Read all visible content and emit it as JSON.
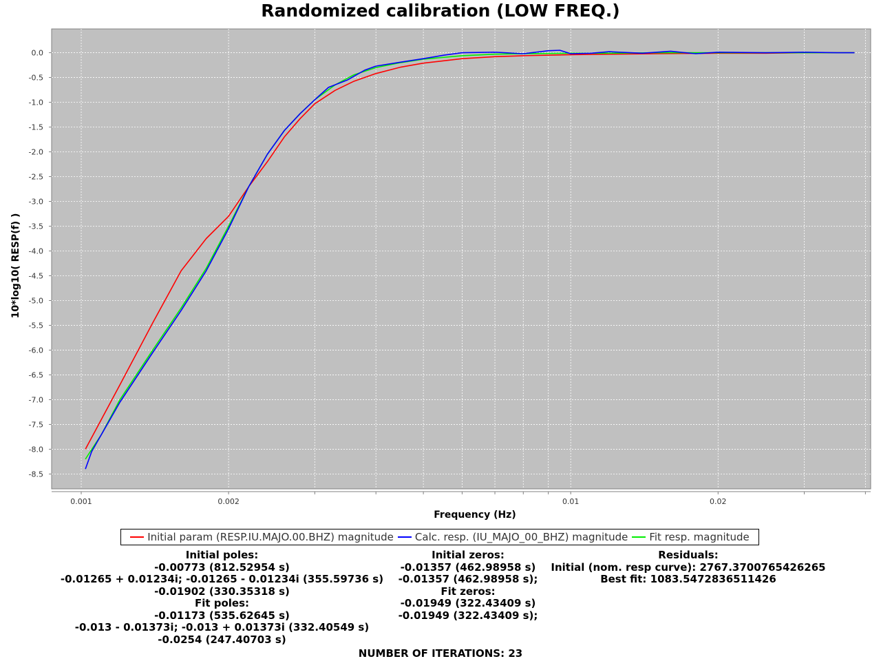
{
  "title": "Randomized calibration (LOW FREQ.)",
  "chart_data": {
    "type": "line",
    "title": "Randomized calibration (LOW FREQ.)",
    "xlabel": "Frequency (Hz)",
    "ylabel": "10*log10( RESP(f) )",
    "xscale": "log",
    "xlim": [
      0.00087,
      0.041
    ],
    "ylim": [
      -8.8,
      0.48
    ],
    "grid": true,
    "background": "#c0c0c0",
    "x_ticks": [
      "0.001",
      "0.002",
      "0.01",
      "0.02"
    ],
    "x_tick_values": [
      0.001,
      0.002,
      0.01,
      0.02
    ],
    "y_ticks": [
      "0.0",
      "-0.5",
      "-1.0",
      "-1.5",
      "-2.0",
      "-2.5",
      "-3.0",
      "-3.5",
      "-4.0",
      "-4.5",
      "-5.0",
      "-5.5",
      "-6.0",
      "-6.5",
      "-7.0",
      "-7.5",
      "-8.0",
      "-8.5"
    ],
    "y_tick_values": [
      0,
      -0.5,
      -1,
      -1.5,
      -2,
      -2.5,
      -3,
      -3.5,
      -4,
      -4.5,
      -5,
      -5.5,
      -6,
      -6.5,
      -7,
      -7.5,
      -8,
      -8.5
    ],
    "legend_position": "bottom",
    "series": [
      {
        "name": "Initial param (RESP.IU.MAJO.00.BHZ) magnitude",
        "color": "#ff0000",
        "x": [
          0.00102,
          0.0012,
          0.0014,
          0.0016,
          0.0018,
          0.002,
          0.0022,
          0.0024,
          0.0026,
          0.0028,
          0.003,
          0.0033,
          0.0036,
          0.004,
          0.0045,
          0.005,
          0.006,
          0.007,
          0.008,
          0.01,
          0.012,
          0.015,
          0.02,
          0.025,
          0.03,
          0.035,
          0.038
        ],
        "y": [
          -8.0,
          -6.7,
          -5.45,
          -4.4,
          -3.75,
          -3.3,
          -2.7,
          -2.2,
          -1.7,
          -1.33,
          -1.03,
          -0.76,
          -0.58,
          -0.42,
          -0.29,
          -0.21,
          -0.12,
          -0.08,
          -0.06,
          -0.04,
          -0.03,
          -0.02,
          -0.01,
          -0.01,
          0.0,
          0.0,
          0.0
        ]
      },
      {
        "name": "Calc. resp. (IU_MAJO_00_BHZ) magnitude",
        "color": "#0000ff",
        "x": [
          0.00102,
          0.00105,
          0.0011,
          0.0012,
          0.0014,
          0.0016,
          0.0018,
          0.002,
          0.0022,
          0.0024,
          0.0026,
          0.0028,
          0.003,
          0.0032,
          0.0035,
          0.0038,
          0.004,
          0.0045,
          0.005,
          0.0055,
          0.006,
          0.007,
          0.008,
          0.009,
          0.0095,
          0.01,
          0.011,
          0.012,
          0.014,
          0.016,
          0.018,
          0.02,
          0.025,
          0.03,
          0.035,
          0.038
        ],
        "y": [
          -8.4,
          -8.05,
          -7.7,
          -7.05,
          -6.05,
          -5.2,
          -4.4,
          -3.55,
          -2.7,
          -2.05,
          -1.57,
          -1.23,
          -0.95,
          -0.7,
          -0.55,
          -0.35,
          -0.27,
          -0.19,
          -0.12,
          -0.05,
          0.0,
          0.01,
          -0.02,
          0.04,
          0.05,
          -0.02,
          -0.01,
          0.02,
          -0.01,
          0.03,
          -0.02,
          0.01,
          0.0,
          0.01,
          0.0,
          0.0
        ]
      },
      {
        "name": "Fit resp. magnitude",
        "color": "#00ee00",
        "x": [
          0.00102,
          0.0011,
          0.0012,
          0.0014,
          0.0016,
          0.0018,
          0.002,
          0.0022,
          0.0024,
          0.0026,
          0.0028,
          0.003,
          0.0033,
          0.0036,
          0.004,
          0.0045,
          0.005,
          0.006,
          0.007,
          0.008,
          0.01,
          0.012,
          0.015,
          0.02,
          0.025,
          0.03,
          0.035,
          0.038
        ],
        "y": [
          -8.2,
          -7.7,
          -7.0,
          -6.0,
          -5.15,
          -4.35,
          -3.5,
          -2.7,
          -2.05,
          -1.57,
          -1.23,
          -0.95,
          -0.65,
          -0.45,
          -0.3,
          -0.2,
          -0.13,
          -0.06,
          -0.03,
          -0.02,
          -0.01,
          -0.01,
          0.0,
          0.0,
          0.0,
          0.0,
          0.0,
          0.0
        ]
      }
    ]
  },
  "legend": {
    "items": [
      {
        "label": "Initial param (RESP.IU.MAJO.00.BHZ) magnitude",
        "color": "#ff0000"
      },
      {
        "label": "Calc. resp. (IU_MAJO_00_BHZ) magnitude",
        "color": "#0000ff"
      },
      {
        "label": "Fit resp. magnitude",
        "color": "#00ee00"
      }
    ]
  },
  "info": {
    "poles": [
      "Initial poles:",
      "-0.00773 (812.52954 s)",
      "-0.01265 + 0.01234i;  -0.01265 - 0.01234i (355.59736 s)",
      "-0.01902 (330.35318 s)",
      "Fit poles:",
      "-0.01173 (535.62645 s)",
      "-0.013 - 0.01373i;  -0.013 + 0.01373i (332.40549 s)",
      "-0.0254 (247.40703 s)"
    ],
    "zeros": [
      "Initial zeros:",
      "-0.01357 (462.98958 s)",
      "-0.01357 (462.98958 s);",
      "Fit zeros:",
      "-0.01949 (322.43409 s)",
      "-0.01949 (322.43409 s);"
    ],
    "residuals": [
      "Residuals:",
      "Initial (nom. resp curve): 2767.3700765426265",
      "Best fit: 1083.5472836511426"
    ],
    "iterations": "NUMBER OF ITERATIONS: 23"
  }
}
